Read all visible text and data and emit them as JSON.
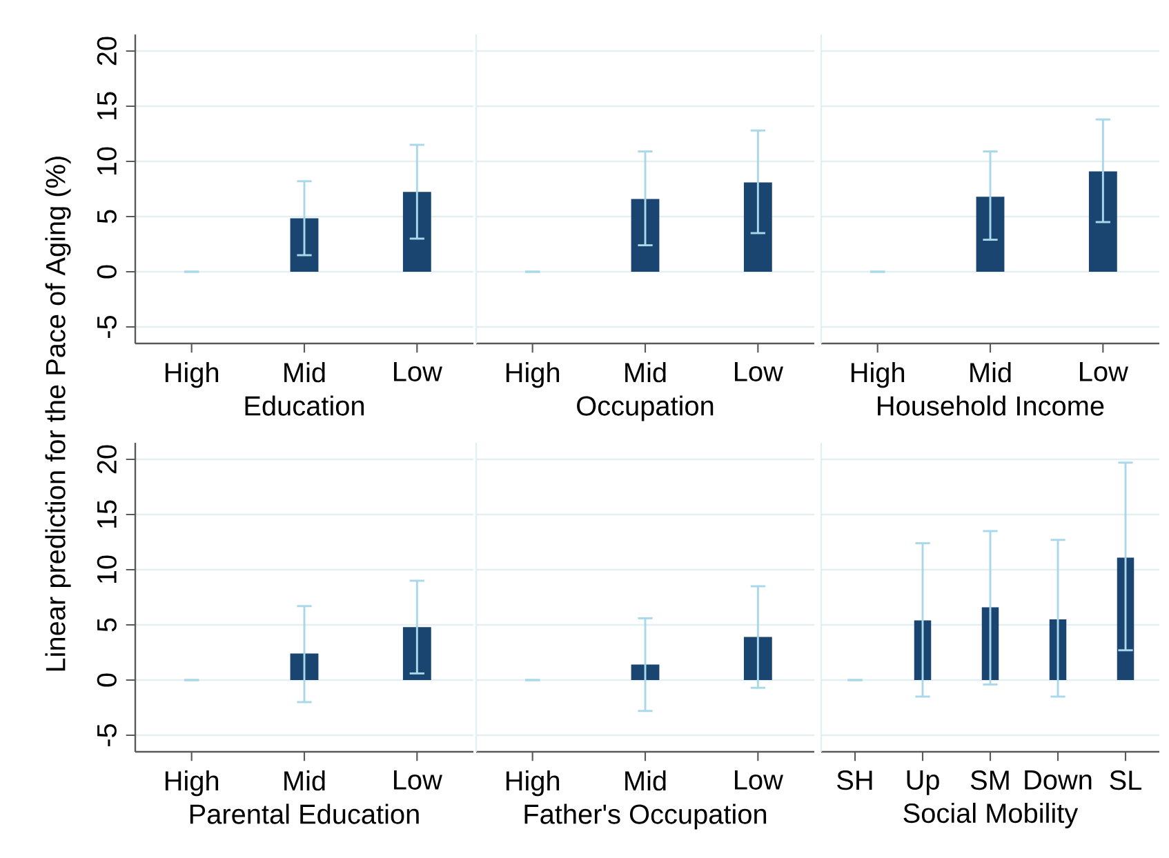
{
  "chart_data": [
    {
      "type": "bar",
      "xlabel": "Education",
      "ylabel": "Linear prediction for the Pace of Aging (%)",
      "categories": [
        "High",
        "Mid",
        "Low"
      ],
      "values": [
        0,
        4.85,
        7.24
      ],
      "errors": [
        [
          0,
          0
        ],
        [
          1.5,
          8.2
        ],
        [
          3.0,
          11.5
        ]
      ],
      "color": "#1a4570",
      "ylim": [
        -6.5,
        21.5
      ],
      "yticks": [
        -5,
        0,
        5,
        10,
        15,
        20
      ],
      "grid": "y"
    },
    {
      "type": "bar",
      "xlabel": "Occupation",
      "categories": [
        "High",
        "Mid",
        "Low"
      ],
      "values": [
        0,
        6.6,
        8.1
      ],
      "errors": [
        [
          0,
          0
        ],
        [
          2.4,
          10.9
        ],
        [
          3.5,
          12.8
        ]
      ],
      "color": "#1a4570",
      "ylim": [
        -6.5,
        21.5
      ],
      "yticks": [
        -5,
        0,
        5,
        10,
        15,
        20
      ],
      "grid": "y",
      "tick_labels": "x"
    },
    {
      "type": "bar",
      "xlabel": "Household Income",
      "categories": [
        "High",
        "Mid",
        "Low"
      ],
      "values": [
        0,
        6.8,
        9.1
      ],
      "errors": [
        [
          0,
          0
        ],
        [
          2.9,
          10.9
        ],
        [
          4.5,
          13.8
        ]
      ],
      "color": "#1a4570",
      "ylim": [
        -6.5,
        21.5
      ],
      "yticks": [
        -5,
        0,
        5,
        10,
        15,
        20
      ],
      "grid": "y",
      "tick_labels": "x"
    },
    {
      "type": "bar",
      "xlabel": "Parental Education",
      "categories": [
        "High",
        "Mid",
        "Low"
      ],
      "values": [
        0,
        2.4,
        4.8
      ],
      "errors": [
        [
          0,
          0
        ],
        [
          -2.0,
          6.7
        ],
        [
          0.6,
          9.0
        ]
      ],
      "color": "#1a4570",
      "ylim": [
        -6.5,
        21.5
      ],
      "yticks": [
        -5,
        0,
        5,
        10,
        15,
        20
      ],
      "grid": "y"
    },
    {
      "type": "bar",
      "xlabel": "Father's Occupation",
      "categories": [
        "High",
        "Mid",
        "Low"
      ],
      "values": [
        0,
        1.4,
        3.9
      ],
      "errors": [
        [
          0,
          0
        ],
        [
          -2.8,
          5.6
        ],
        [
          -0.7,
          8.5
        ]
      ],
      "color": "#1a4570",
      "ylim": [
        -6.5,
        21.5
      ],
      "yticks": [
        -5,
        0,
        5,
        10,
        15,
        20
      ],
      "grid": "y",
      "tick_labels": "x"
    },
    {
      "type": "bar",
      "xlabel": "Social Mobility",
      "categories": [
        "SH",
        "Up",
        "SM",
        "Down",
        "SL"
      ],
      "values": [
        0,
        5.4,
        6.6,
        5.5,
        11.1
      ],
      "errors": [
        [
          0,
          0
        ],
        [
          -1.5,
          12.4
        ],
        [
          -0.4,
          13.5
        ],
        [
          -1.5,
          12.7
        ],
        [
          2.7,
          19.7
        ]
      ],
      "color": "#1a4570",
      "ylim": [
        -6.5,
        21.5
      ],
      "yticks": [
        -5,
        0,
        5,
        10,
        15,
        20
      ],
      "grid": "y",
      "tick_labels": "x"
    }
  ]
}
